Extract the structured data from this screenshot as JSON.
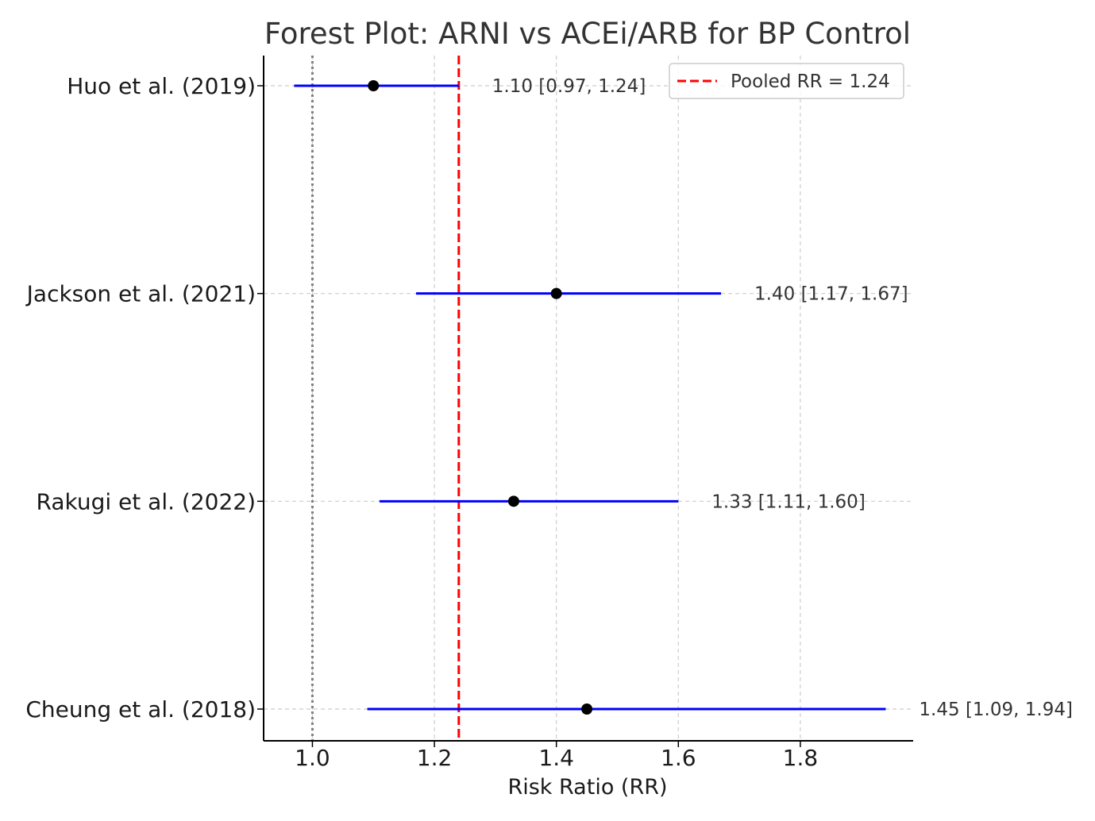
{
  "chart_data": {
    "type": "forest",
    "title": "Forest Plot: ARNI vs ACEi/ARB for BP Control",
    "xlabel": "Risk Ratio (RR)",
    "ylabel": "",
    "xlim": [
      0.92,
      1.985
    ],
    "xticks": [
      1.0,
      1.2,
      1.4,
      1.6,
      1.8
    ],
    "xtick_labels": [
      "1.0",
      "1.2",
      "1.4",
      "1.6",
      "1.8"
    ],
    "grid": true,
    "legend_position": "upper right",
    "reference_line": 1.0,
    "pooled": {
      "value": 1.24,
      "label": "Pooled RR = 1.24",
      "color": "#ff0000"
    },
    "studies": [
      {
        "name": "Huo et al. (2019)",
        "rr": 1.1,
        "lower": 0.97,
        "upper": 1.24,
        "annotation": "1.10 [0.97, 1.24]"
      },
      {
        "name": "Jackson et al. (2021)",
        "rr": 1.4,
        "lower": 1.17,
        "upper": 1.67,
        "annotation": "1.40 [1.17, 1.67]"
      },
      {
        "name": "Rakugi et al. (2022)",
        "rr": 1.33,
        "lower": 1.11,
        "upper": 1.6,
        "annotation": "1.33 [1.11, 1.60]"
      },
      {
        "name": "Cheung et al. (2018)",
        "rr": 1.45,
        "lower": 1.09,
        "upper": 1.94,
        "annotation": "1.45 [1.09, 1.94]"
      }
    ],
    "ci_color": "#0000ff",
    "point_color": "#000000"
  }
}
